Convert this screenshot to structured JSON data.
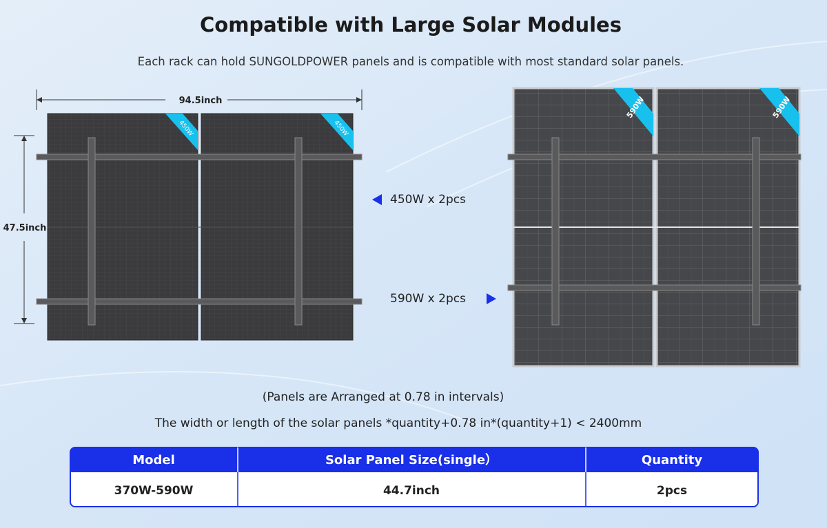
{
  "header": {
    "title": "Compatible with Large Solar Modules",
    "subtitle": "Each rack can hold SUNGOLDPOWER panels and is compatible with most standard solar panels."
  },
  "left_rack": {
    "width_label": "94.5inch",
    "height_label": "47.5inch",
    "panel_badges": [
      "450W",
      "450W"
    ],
    "caption": "450W x 2pcs"
  },
  "right_rack": {
    "panel_badges": [
      "590W",
      "590W"
    ],
    "caption": "590W x 2pcs"
  },
  "notes": {
    "interval": "(Panels are Arranged at 0.78 in intervals)",
    "formula": "The width or length of the solar panels *quantity+0.78 in*(quantity+1) < 2400mm"
  },
  "table": {
    "headers": [
      "Model",
      "Solar Panel Size(single）",
      "Quantity"
    ],
    "rows": [
      [
        "370W-590W",
        "44.7inch",
        "2pcs"
      ]
    ]
  }
}
